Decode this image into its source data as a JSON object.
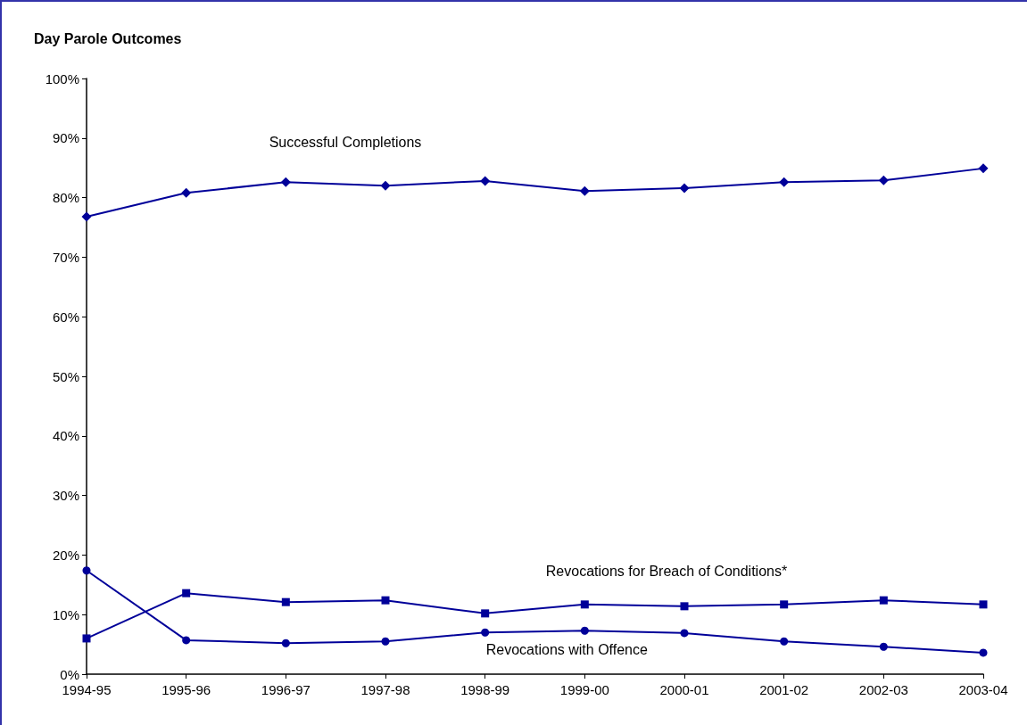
{
  "chart_data": {
    "type": "line",
    "title": "Day Parole Outcomes",
    "categories": [
      "1994-95",
      "1995-96",
      "1996-97",
      "1997-98",
      "1998-99",
      "1999-00",
      "2000-01",
      "2001-02",
      "2002-03",
      "2003-04"
    ],
    "series": [
      {
        "name": "Successful Completions",
        "color": "#000099",
        "marker": "diamond",
        "values": [
          76.8,
          80.8,
          82.6,
          82.0,
          82.8,
          81.1,
          81.6,
          82.6,
          82.9,
          84.9
        ]
      },
      {
        "name": "Revocations for Breach of Conditions*",
        "color": "#000099",
        "marker": "square",
        "values": [
          6.0,
          13.6,
          12.1,
          12.4,
          10.2,
          11.7,
          11.4,
          11.7,
          12.4,
          11.7
        ]
      },
      {
        "name": "Revocations with Offence",
        "color": "#000099",
        "marker": "circle",
        "values": [
          17.4,
          5.7,
          5.2,
          5.5,
          7.0,
          7.3,
          6.9,
          5.5,
          4.6,
          3.6
        ]
      }
    ],
    "ylim": [
      0,
      100
    ],
    "yticks": [
      {
        "value": 0,
        "label": "0%"
      },
      {
        "value": 10,
        "label": "10%"
      },
      {
        "value": 20,
        "label": "20%"
      },
      {
        "value": 30,
        "label": "30%"
      },
      {
        "value": 40,
        "label": "40%"
      },
      {
        "value": 50,
        "label": "50%"
      },
      {
        "value": 60,
        "label": "60%"
      },
      {
        "value": 70,
        "label": "70%"
      },
      {
        "value": 80,
        "label": "80%"
      },
      {
        "value": 90,
        "label": "90%"
      },
      {
        "value": 100,
        "label": "100%"
      }
    ],
    "grid": false,
    "legend": false,
    "line_style": "solid"
  }
}
